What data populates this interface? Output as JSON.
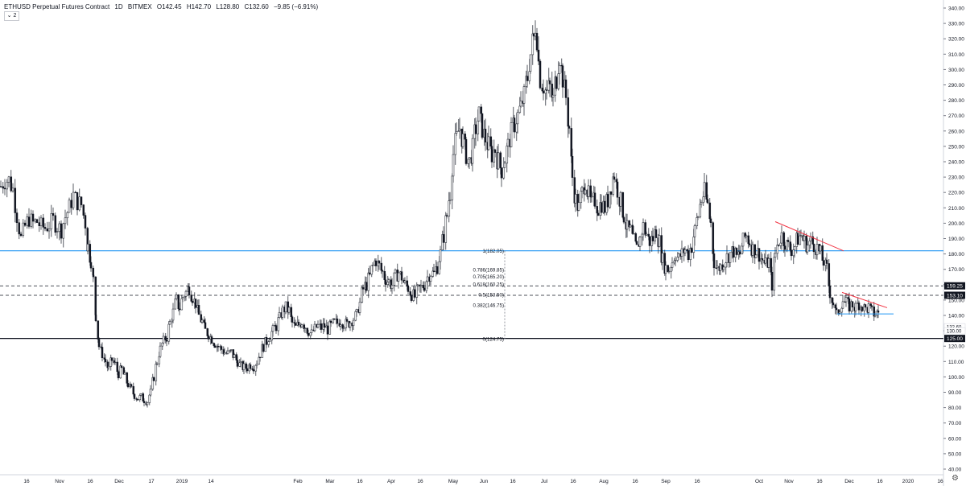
{
  "header": {
    "symbol": "ETHUSD Perpetual Futures Contract",
    "interval": "1D",
    "exchange": "BITMEX",
    "open": "O142.45",
    "high": "H142.70",
    "low": "L128.80",
    "close": "C132.60",
    "change": "−9.85 (−6.91%)",
    "indicator_badge": "⌄ 2"
  },
  "colors": {
    "candle_up": "#ffffff",
    "candle_down": "#131722",
    "candle_outline": "#131722",
    "hline_blue": "#2196f3",
    "hline_black": "#131722",
    "dashed": "#131722",
    "trend_red": "#f23645",
    "axis_text": "#131722",
    "label_bg": "#131722"
  },
  "chart_data": {
    "type": "candlestick",
    "title": "ETHUSD Perpetual Futures Contract · 1D · BITMEX",
    "ylim": [
      37,
      345
    ],
    "y_ticks": [
      40,
      50,
      60,
      70,
      80,
      90,
      100,
      110,
      120,
      130,
      140,
      150,
      160,
      170,
      180,
      190,
      200,
      210,
      220,
      230,
      240,
      250,
      260,
      270,
      280,
      290,
      300,
      310,
      320,
      330,
      340
    ],
    "x_ticks": [
      "16",
      "Nov",
      "16",
      "Dec",
      "17",
      "2019",
      "14",
      "Feb",
      "Mar",
      "16",
      "Apr",
      "16",
      "May",
      "Jun",
      "16",
      "Jul",
      "16",
      "Aug",
      "16",
      "Sep",
      "16",
      "Oct",
      "Nov",
      "16",
      "Dec",
      "16",
      "2020",
      "16"
    ],
    "price_path": [
      [
        0,
        224
      ],
      [
        5,
        228
      ],
      [
        10,
        228
      ],
      [
        15,
        222
      ],
      [
        20,
        205
      ],
      [
        25,
        190
      ],
      [
        30,
        198
      ],
      [
        35,
        203
      ],
      [
        40,
        200
      ],
      [
        45,
        201
      ],
      [
        50,
        198
      ],
      [
        55,
        197
      ],
      [
        60,
        199
      ],
      [
        65,
        202
      ],
      [
        70,
        198
      ],
      [
        75,
        196
      ],
      [
        80,
        204
      ],
      [
        85,
        210
      ],
      [
        90,
        218
      ],
      [
        95,
        214
      ],
      [
        100,
        212
      ],
      [
        105,
        200
      ],
      [
        108,
        185
      ],
      [
        112,
        176
      ],
      [
        115,
        163
      ],
      [
        118,
        140
      ],
      [
        122,
        120
      ],
      [
        126,
        115
      ],
      [
        130,
        110
      ],
      [
        134,
        105
      ],
      [
        138,
        111
      ],
      [
        142,
        108
      ],
      [
        146,
        102
      ],
      [
        150,
        105
      ],
      [
        154,
        100
      ],
      [
        158,
        95
      ],
      [
        162,
        92
      ],
      [
        166,
        88
      ],
      [
        170,
        86
      ],
      [
        174,
        87
      ],
      [
        178,
        85
      ],
      [
        182,
        84
      ],
      [
        186,
        90
      ],
      [
        190,
        100
      ],
      [
        194,
        110
      ],
      [
        198,
        118
      ],
      [
        202,
        123
      ],
      [
        206,
        126
      ],
      [
        210,
        135
      ],
      [
        214,
        142
      ],
      [
        218,
        150
      ],
      [
        222,
        145
      ],
      [
        226,
        152
      ],
      [
        230,
        155
      ],
      [
        234,
        158
      ],
      [
        238,
        152
      ],
      [
        242,
        148
      ],
      [
        246,
        140
      ],
      [
        250,
        136
      ],
      [
        254,
        130
      ],
      [
        258,
        128
      ],
      [
        262,
        125
      ],
      [
        266,
        122
      ],
      [
        270,
        120
      ],
      [
        274,
        118
      ],
      [
        278,
        116
      ],
      [
        282,
        115
      ],
      [
        286,
        116
      ],
      [
        290,
        113
      ],
      [
        294,
        110
      ],
      [
        298,
        107
      ],
      [
        302,
        106
      ],
      [
        306,
        106
      ],
      [
        310,
        108
      ],
      [
        314,
        107
      ],
      [
        318,
        110
      ],
      [
        322,
        115
      ],
      [
        326,
        120
      ],
      [
        330,
        123
      ],
      [
        334,
        127
      ],
      [
        338,
        130
      ],
      [
        342,
        133
      ],
      [
        346,
        138
      ],
      [
        350,
        143
      ],
      [
        354,
        145
      ],
      [
        358,
        143
      ],
      [
        362,
        135
      ],
      [
        366,
        132
      ],
      [
        370,
        134
      ],
      [
        374,
        136
      ],
      [
        378,
        133
      ],
      [
        382,
        130
      ],
      [
        386,
        128
      ],
      [
        390,
        131
      ],
      [
        394,
        133
      ],
      [
        398,
        132
      ],
      [
        402,
        133
      ],
      [
        406,
        131
      ],
      [
        410,
        133
      ],
      [
        414,
        135
      ],
      [
        418,
        135
      ],
      [
        422,
        137
      ],
      [
        426,
        135
      ],
      [
        430,
        134
      ],
      [
        434,
        136
      ],
      [
        438,
        138
      ],
      [
        442,
        140
      ],
      [
        446,
        148
      ],
      [
        450,
        157
      ],
      [
        454,
        160
      ],
      [
        458,
        165
      ],
      [
        462,
        172
      ],
      [
        466,
        176
      ],
      [
        470,
        172
      ],
      [
        474,
        168
      ],
      [
        478,
        164
      ],
      [
        482,
        162
      ],
      [
        486,
        160
      ],
      [
        490,
        165
      ],
      [
        494,
        168
      ],
      [
        498,
        165
      ],
      [
        502,
        160
      ],
      [
        506,
        158
      ],
      [
        510,
        154
      ],
      [
        514,
        152
      ],
      [
        518,
        156
      ],
      [
        522,
        158
      ],
      [
        526,
        160
      ],
      [
        530,
        165
      ],
      [
        534,
        168
      ],
      [
        538,
        167
      ],
      [
        542,
        172
      ],
      [
        546,
        180
      ],
      [
        550,
        192
      ],
      [
        554,
        205
      ],
      [
        558,
        220
      ],
      [
        562,
        245
      ],
      [
        566,
        255
      ],
      [
        570,
        262
      ],
      [
        574,
        254
      ],
      [
        578,
        245
      ],
      [
        582,
        240
      ],
      [
        586,
        248
      ],
      [
        590,
        262
      ],
      [
        594,
        270
      ],
      [
        598,
        262
      ],
      [
        602,
        255
      ],
      [
        606,
        250
      ],
      [
        610,
        245
      ],
      [
        614,
        248
      ],
      [
        618,
        240
      ],
      [
        622,
        235
      ],
      [
        626,
        242
      ],
      [
        630,
        250
      ],
      [
        634,
        258
      ],
      [
        638,
        265
      ],
      [
        642,
        270
      ],
      [
        646,
        275
      ],
      [
        650,
        282
      ],
      [
        654,
        295
      ],
      [
        658,
        310
      ],
      [
        662,
        320
      ],
      [
        664,
        330
      ],
      [
        666,
        322
      ],
      [
        668,
        305
      ],
      [
        670,
        295
      ],
      [
        674,
        290
      ],
      [
        678,
        285
      ],
      [
        682,
        288
      ],
      [
        686,
        280
      ],
      [
        690,
        295
      ],
      [
        694,
        310
      ],
      [
        698,
        295
      ],
      [
        702,
        282
      ],
      [
        706,
        262
      ],
      [
        710,
        230
      ],
      [
        714,
        215
      ],
      [
        718,
        210
      ],
      [
        722,
        220
      ],
      [
        726,
        228
      ],
      [
        730,
        218
      ],
      [
        734,
        212
      ],
      [
        738,
        215
      ],
      [
        742,
        210
      ],
      [
        746,
        213
      ],
      [
        750,
        210
      ],
      [
        754,
        215
      ],
      [
        758,
        225
      ],
      [
        762,
        232
      ],
      [
        766,
        222
      ],
      [
        770,
        214
      ],
      [
        774,
        205
      ],
      [
        778,
        196
      ],
      [
        782,
        195
      ],
      [
        786,
        188
      ],
      [
        790,
        183
      ],
      [
        794,
        190
      ],
      [
        798,
        198
      ],
      [
        802,
        193
      ],
      [
        806,
        188
      ],
      [
        810,
        190
      ],
      [
        814,
        195
      ],
      [
        818,
        188
      ],
      [
        822,
        176
      ],
      [
        826,
        171
      ],
      [
        830,
        170
      ],
      [
        834,
        175
      ],
      [
        838,
        180
      ],
      [
        842,
        177
      ],
      [
        846,
        180
      ],
      [
        850,
        183
      ],
      [
        854,
        180
      ],
      [
        858,
        185
      ],
      [
        862,
        195
      ],
      [
        866,
        205
      ],
      [
        870,
        215
      ],
      [
        874,
        220
      ],
      [
        878,
        212
      ],
      [
        882,
        200
      ],
      [
        886,
        175
      ],
      [
        890,
        170
      ],
      [
        894,
        172
      ],
      [
        898,
        175
      ],
      [
        902,
        178
      ],
      [
        906,
        180
      ],
      [
        910,
        182
      ],
      [
        914,
        178
      ],
      [
        918,
        180
      ],
      [
        922,
        188
      ],
      [
        926,
        192
      ],
      [
        930,
        188
      ],
      [
        934,
        183
      ],
      [
        938,
        182
      ],
      [
        942,
        180
      ],
      [
        946,
        176
      ],
      [
        950,
        173
      ],
      [
        954,
        175
      ],
      [
        958,
        160
      ],
      [
        962,
        180
      ],
      [
        966,
        188
      ],
      [
        970,
        192
      ],
      [
        974,
        188
      ],
      [
        978,
        185
      ],
      [
        982,
        183
      ],
      [
        986,
        185
      ],
      [
        990,
        190
      ],
      [
        994,
        192
      ],
      [
        998,
        188
      ],
      [
        1002,
        186
      ],
      [
        1006,
        188
      ],
      [
        1010,
        186
      ],
      [
        1014,
        184
      ],
      [
        1018,
        180
      ],
      [
        1022,
        175
      ],
      [
        1026,
        170
      ],
      [
        1030,
        155
      ],
      [
        1034,
        148
      ],
      [
        1038,
        140
      ],
      [
        1042,
        145
      ],
      [
        1046,
        150
      ],
      [
        1050,
        148
      ],
      [
        1054,
        146
      ],
      [
        1058,
        147
      ],
      [
        1062,
        145
      ],
      [
        1066,
        148
      ],
      [
        1070,
        146
      ],
      [
        1074,
        144
      ],
      [
        1078,
        145
      ],
      [
        1082,
        142
      ],
      [
        1086,
        141
      ],
      [
        1090,
        142
      ],
      [
        1092,
        133
      ]
    ],
    "horizontal_lines": [
      {
        "price": 182.05,
        "style": "solid",
        "color": "blue",
        "label": ""
      },
      {
        "price": 159.25,
        "style": "dashed",
        "label": "159.25"
      },
      {
        "price": 153.1,
        "style": "dashed",
        "label": "153.10"
      },
      {
        "price": 125.0,
        "style": "solid",
        "color": "black",
        "label": "125.00"
      }
    ],
    "price_labels": {
      "last": "132.60",
      "extra": "130.00"
    },
    "fibonacci": {
      "levels": [
        {
          "text": "1(182.05)",
          "price": 182.05
        },
        {
          "text": "0.786(169.85)",
          "price": 169.85
        },
        {
          "text": "0.705(165.20)",
          "price": 165.2
        },
        {
          "text": "0.618(160.25)",
          "price": 160.25
        },
        {
          "text": "0.5(153.50)",
          "price": 153.5
        },
        {
          "text": "0.382(146.75)",
          "price": 146.75
        },
        {
          "text": "0(124.75)",
          "price": 124.75
        }
      ]
    },
    "trendlines": [
      {
        "from": [
          963,
          201
        ],
        "to": [
          1048,
          182
        ],
        "color": "red"
      },
      {
        "from": [
          1046,
          155
        ],
        "to": [
          1102,
          145
        ],
        "color": "red"
      },
      {
        "from": [
          1040,
          141
        ],
        "to": [
          1110,
          141
        ],
        "color": "blue"
      }
    ]
  }
}
